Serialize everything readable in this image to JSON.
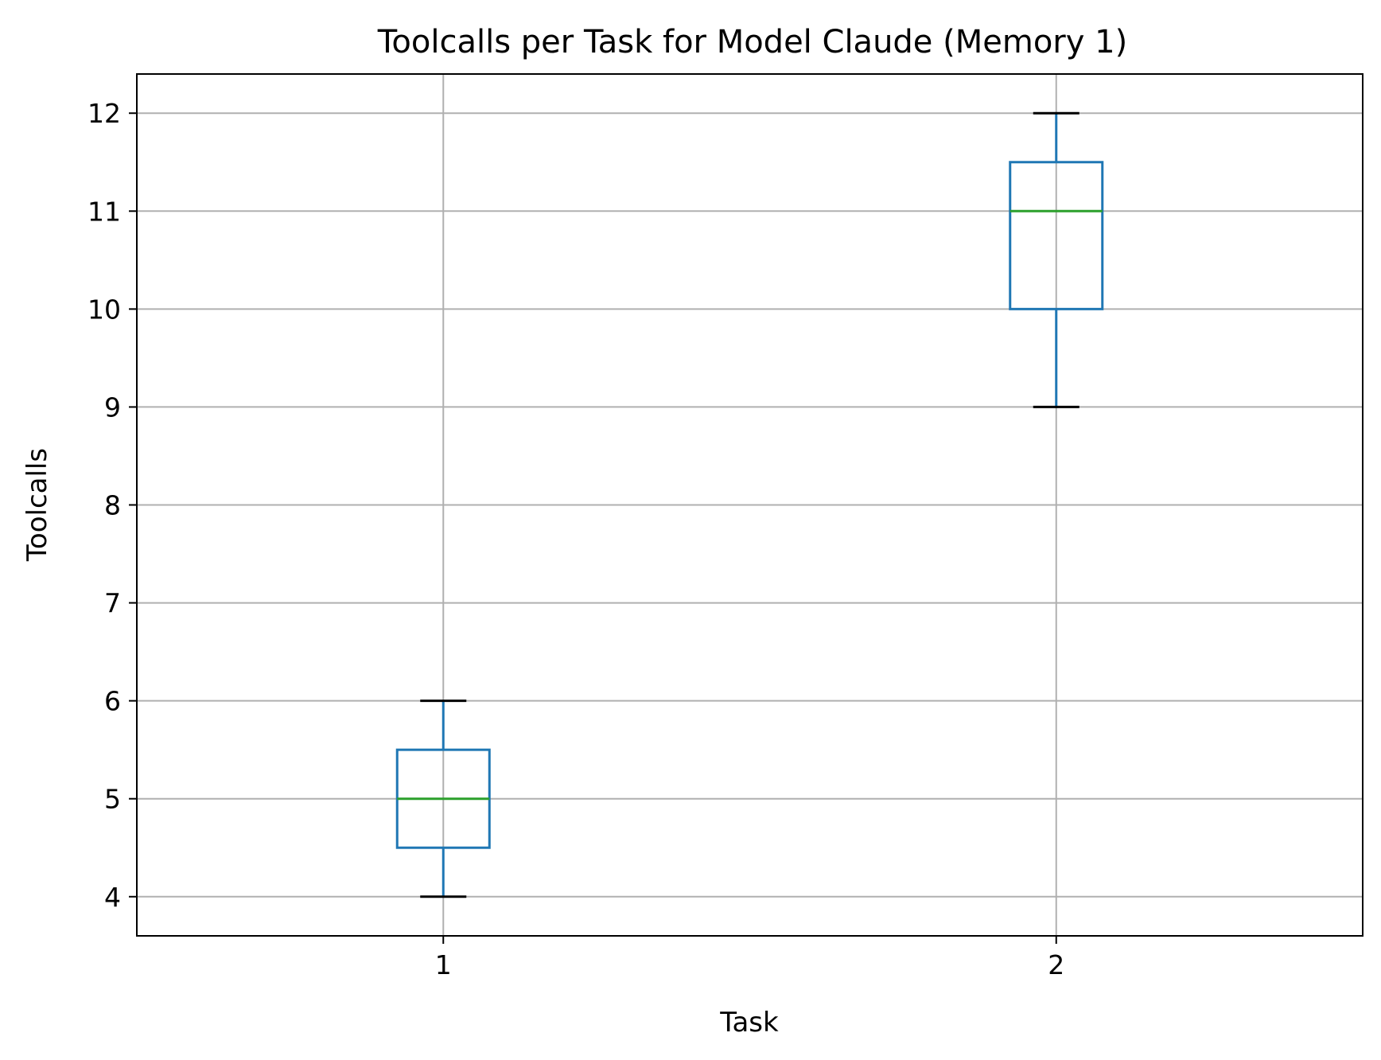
{
  "chart_data": {
    "type": "box",
    "title": "Toolcalls per Task for Model Claude (Memory 1)",
    "xlabel": "Task",
    "ylabel": "Toolcalls",
    "ylim": [
      3.6,
      12.4
    ],
    "yticks": [
      4,
      5,
      6,
      7,
      8,
      9,
      10,
      11,
      12
    ],
    "categories": [
      "1",
      "2"
    ],
    "boxes": [
      {
        "category": "1",
        "whisker_low": 4,
        "q1": 4.5,
        "median": 5,
        "q3": 5.5,
        "whisker_high": 6
      },
      {
        "category": "2",
        "whisker_low": 9,
        "q1": 10,
        "median": 11,
        "q3": 11.5,
        "whisker_high": 12
      }
    ],
    "grid": true,
    "colors": {
      "box": "#1f77b4",
      "median": "#2ca02c",
      "whisker_cap": "#000000",
      "grid": "#b0b0b0"
    }
  }
}
